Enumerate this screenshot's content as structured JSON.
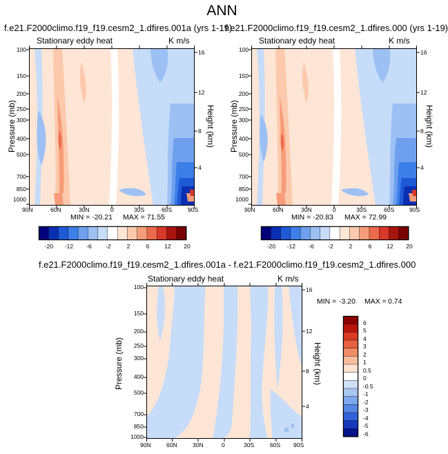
{
  "page": {
    "title": "ANN"
  },
  "colors": {
    "scale_horizontal": [
      "#04007a",
      "#0a2fb3",
      "#1f5ad6",
      "#3d7fe8",
      "#6ea0ef",
      "#9cc0f4",
      "#c7dcf8",
      "#ffffff",
      "#fde6d6",
      "#fcc9ac",
      "#f79c78",
      "#ec6a4c",
      "#d8382a",
      "#a81410",
      "#780000"
    ],
    "scale_vertical": [
      "#8c0000",
      "#b8140c",
      "#d93a22",
      "#e7603f",
      "#f08c66",
      "#f8bd9f",
      "#fde2d2",
      "#ffffff",
      "#cfe0f6",
      "#a9c6f1",
      "#7fa7ec",
      "#5887e3",
      "#3262d8",
      "#1738bd",
      "#06148c"
    ]
  },
  "chart_data": [
    {
      "type": "contour",
      "title": "f.e21.F2000climo.f19_f19.cesm2_1.dfires.001a (yrs 1-19)",
      "subtitle": "Stationary eddy heat",
      "units": "K m/s",
      "x_ticks": [
        "90N",
        "60N",
        "30N",
        "0",
        "30S",
        "60S",
        "90S"
      ],
      "y_ticks": [
        "100",
        "150",
        "200",
        "250",
        "300",
        "400",
        "500",
        "700",
        "850",
        "1000"
      ],
      "y_ticks_right": [
        "16",
        "12",
        "8",
        "4"
      ],
      "xlabel": "",
      "ylabel": "Pressure (mb)",
      "ylabel_right": "Height (km)",
      "min_label": "MIN = -20.21",
      "max_label": "MAX = 71.55",
      "min": -20.21,
      "max": 71.55,
      "colorbar_labels": [
        "-20",
        "-12",
        "-6",
        "-2",
        "2",
        "6",
        "12",
        "20"
      ]
    },
    {
      "type": "contour",
      "title": "f.e21.F2000climo.f19_f19.cesm2_1.dfires.000 (yrs 1-19)",
      "subtitle": "Stationary eddy heat",
      "units": "K m/s",
      "x_ticks": [
        "90N",
        "60N",
        "30N",
        "0",
        "30S",
        "60S",
        "90S"
      ],
      "y_ticks": [
        "100",
        "150",
        "200",
        "250",
        "300",
        "400",
        "500",
        "700",
        "850",
        "1000"
      ],
      "y_ticks_right": [
        "16",
        "12",
        "8",
        "4"
      ],
      "xlabel": "",
      "ylabel": "Pressure (mb)",
      "ylabel_right": "Height (km)",
      "min_label": "MIN = -20.83",
      "max_label": "MAX = 72.99",
      "min": -20.83,
      "max": 72.99,
      "colorbar_labels": [
        "-20",
        "-12",
        "-6",
        "-2",
        "2",
        "6",
        "12",
        "20"
      ]
    },
    {
      "type": "contour",
      "title": "f.e21.F2000climo.f19_f19.cesm2_1.dfires.001a - f.e21.F2000climo.f19_f19.cesm2_1.dfires.000",
      "subtitle": "Stationary eddy heat",
      "units": "K m/s",
      "x_ticks": [
        "90N",
        "60N",
        "30N",
        "0",
        "30S",
        "60S",
        "90S"
      ],
      "y_ticks": [
        "100",
        "150",
        "200",
        "250",
        "300",
        "400",
        "500",
        "700",
        "850",
        "1000"
      ],
      "y_ticks_right": [
        "16",
        "12",
        "8",
        "4"
      ],
      "xlabel": "",
      "ylabel": "Pressure (mb)",
      "ylabel_right": "Height (km)",
      "min_label": "MIN =",
      "min_value": "-3.20",
      "max_label": "MAX =",
      "max_value": "0.74",
      "min": -3.2,
      "max": 0.74,
      "colorbar_labels": [
        "6",
        "5",
        "4",
        "3",
        "2",
        "1",
        "0.5",
        "0",
        "-0.5",
        "-1",
        "-2",
        "-3",
        "-4",
        "-5",
        "-6"
      ]
    }
  ]
}
